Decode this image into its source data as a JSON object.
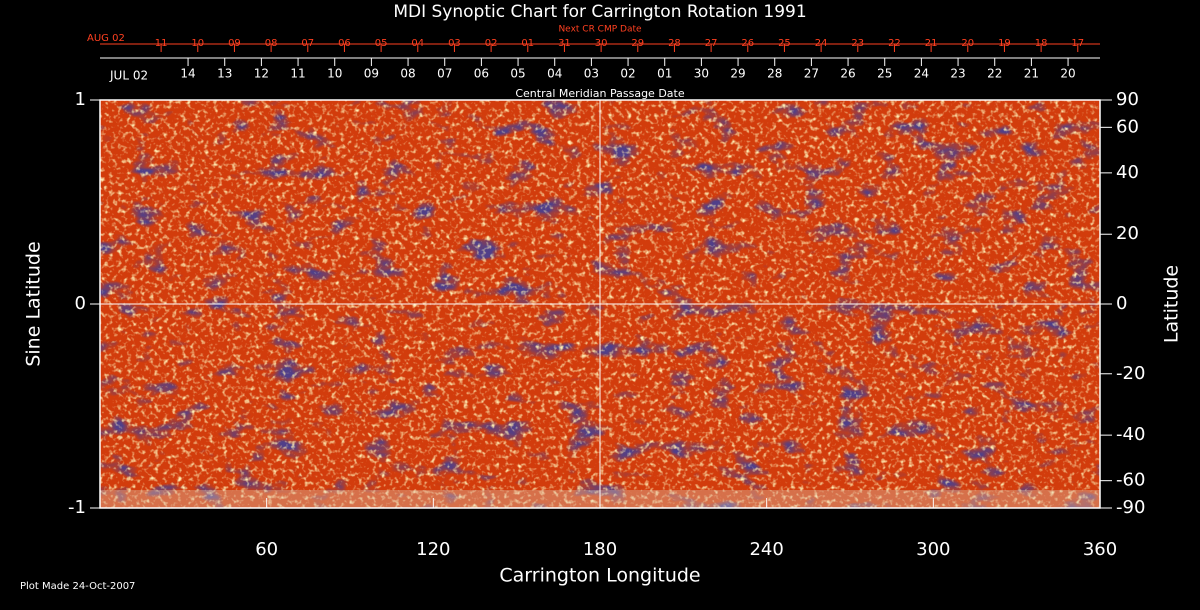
{
  "chart_data": {
    "type": "synoptic-map",
    "title": "MDI Synoptic Chart for Carrington Rotation 1991",
    "top_axis_title": "Next CR CMP Date",
    "top_start_label": "AUG 02",
    "top_ticks": [
      {
        "value": 22.0,
        "label": "11"
      },
      {
        "value": 35.2,
        "label": "10"
      },
      {
        "value": 48.4,
        "label": "09"
      },
      {
        "value": 61.6,
        "label": "08"
      },
      {
        "value": 74.8,
        "label": "07"
      },
      {
        "value": 88.0,
        "label": "06"
      },
      {
        "value": 101.2,
        "label": "05"
      },
      {
        "value": 114.4,
        "label": "04"
      },
      {
        "value": 127.6,
        "label": "03"
      },
      {
        "value": 140.8,
        "label": "02"
      },
      {
        "value": 154.0,
        "label": "01"
      },
      {
        "value": 167.2,
        "label": "31"
      },
      {
        "value": 180.4,
        "label": "30"
      },
      {
        "value": 193.6,
        "label": "29"
      },
      {
        "value": 206.8,
        "label": "28"
      },
      {
        "value": 220.0,
        "label": "27"
      },
      {
        "value": 233.2,
        "label": "26"
      },
      {
        "value": 246.4,
        "label": "25"
      },
      {
        "value": 259.6,
        "label": "24"
      },
      {
        "value": 272.8,
        "label": "23"
      },
      {
        "value": 286.0,
        "label": "22"
      },
      {
        "value": 299.2,
        "label": "21"
      },
      {
        "value": 312.4,
        "label": "20"
      },
      {
        "value": 325.6,
        "label": "19"
      },
      {
        "value": 338.8,
        "label": "18"
      },
      {
        "value": 352.0,
        "label": "17"
      }
    ],
    "top_color": "#ff4020",
    "cmp_axis_title": "Central Meridian Passage Date",
    "cmp_start_label": "JUL 02",
    "cmp_ticks": [
      {
        "value": 31.7,
        "label": "14"
      },
      {
        "value": 44.9,
        "label": "13"
      },
      {
        "value": 58.1,
        "label": "12"
      },
      {
        "value": 71.3,
        "label": "11"
      },
      {
        "value": 84.5,
        "label": "10"
      },
      {
        "value": 97.7,
        "label": "09"
      },
      {
        "value": 110.9,
        "label": "08"
      },
      {
        "value": 124.1,
        "label": "07"
      },
      {
        "value": 137.3,
        "label": "06"
      },
      {
        "value": 150.5,
        "label": "05"
      },
      {
        "value": 163.7,
        "label": "04"
      },
      {
        "value": 176.9,
        "label": "03"
      },
      {
        "value": 190.1,
        "label": "02"
      },
      {
        "value": 203.3,
        "label": "01"
      },
      {
        "value": 216.5,
        "label": "30"
      },
      {
        "value": 229.7,
        "label": "29"
      },
      {
        "value": 242.9,
        "label": "28"
      },
      {
        "value": 256.1,
        "label": "27"
      },
      {
        "value": 269.3,
        "label": "26"
      },
      {
        "value": 282.5,
        "label": "25"
      },
      {
        "value": 295.7,
        "label": "24"
      },
      {
        "value": 308.9,
        "label": "23"
      },
      {
        "value": 322.1,
        "label": "22"
      },
      {
        "value": 335.3,
        "label": "21"
      },
      {
        "value": 348.5,
        "label": "20"
      }
    ],
    "x_label": "Carrington Longitude",
    "xlim": [
      0,
      360
    ],
    "xticks": [
      60,
      120,
      180,
      240,
      300,
      360
    ],
    "y_label": "Sine Latitude",
    "ylim": [
      -1,
      1
    ],
    "yticks": [
      -1,
      0,
      1
    ],
    "y2_label": "Latitude",
    "y2scale": "sine",
    "y2lim": [
      -90,
      90
    ],
    "y2ticks": [
      90,
      60,
      40,
      20,
      0,
      -20,
      -40,
      -60,
      -90
    ],
    "footer": "Plot Made 24-Oct-2007"
  }
}
